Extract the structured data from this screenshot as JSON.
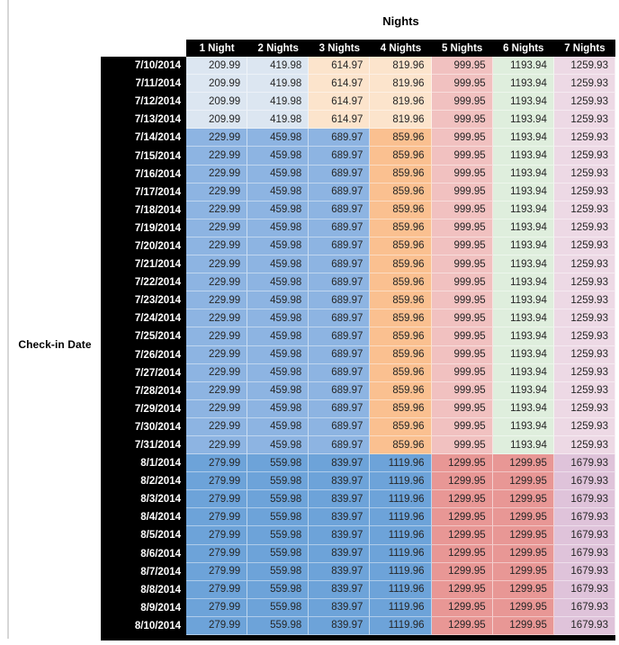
{
  "page": {
    "background": "#ffffff",
    "left_gutter_line_color": "#d6d6d6"
  },
  "table": {
    "title": "Nights",
    "row_axis_label": "Check-in Date",
    "header_bg": "#000000",
    "header_text_color": "#ffffff",
    "date_col_bg": "#000000",
    "date_text_color": "#ffffff",
    "value_text_color": "#262626",
    "columns": [
      "1 Night",
      "2 Nights",
      "3 Nights",
      "4 Nights",
      "5 Nights",
      "6 Nights",
      "7 Nights"
    ],
    "groups": {
      "early_july": {
        "values": [
          "209.99",
          "419.98",
          "614.97",
          "819.96",
          "999.95",
          "1193.94",
          "1259.93"
        ],
        "cell_colors": [
          "#DCE6F1",
          "#DCE6F1",
          "#FCE4CC",
          "#FCE4CC",
          "#F1C1C0",
          "#DFEEDD",
          "#EDD9E5"
        ]
      },
      "mid_july": {
        "values": [
          "229.99",
          "459.98",
          "689.97",
          "859.96",
          "999.95",
          "1193.94",
          "1259.93"
        ],
        "cell_colors": [
          "#8DB4E2",
          "#8DB4E2",
          "#8DB4E2",
          "#FAC090",
          "#F1C1C0",
          "#DFEEDD",
          "#EDD9E5"
        ]
      },
      "august": {
        "values": [
          "279.99",
          "559.98",
          "839.97",
          "1119.96",
          "1299.95",
          "1299.95",
          "1679.93"
        ],
        "cell_colors": [
          "#6DA3D9",
          "#6DA3D9",
          "#6DA3D9",
          "#6DA3D9",
          "#E89795",
          "#E89795",
          "#DFC3DA"
        ]
      }
    },
    "rows": [
      {
        "date": "7/10/2014",
        "group": "early_july"
      },
      {
        "date": "7/11/2014",
        "group": "early_july"
      },
      {
        "date": "7/12/2014",
        "group": "early_july"
      },
      {
        "date": "7/13/2014",
        "group": "early_july"
      },
      {
        "date": "7/14/2014",
        "group": "mid_july"
      },
      {
        "date": "7/15/2014",
        "group": "mid_july"
      },
      {
        "date": "7/16/2014",
        "group": "mid_july"
      },
      {
        "date": "7/17/2014",
        "group": "mid_july"
      },
      {
        "date": "7/18/2014",
        "group": "mid_july"
      },
      {
        "date": "7/19/2014",
        "group": "mid_july"
      },
      {
        "date": "7/20/2014",
        "group": "mid_july"
      },
      {
        "date": "7/21/2014",
        "group": "mid_july"
      },
      {
        "date": "7/22/2014",
        "group": "mid_july"
      },
      {
        "date": "7/23/2014",
        "group": "mid_july"
      },
      {
        "date": "7/24/2014",
        "group": "mid_july"
      },
      {
        "date": "7/25/2014",
        "group": "mid_july"
      },
      {
        "date": "7/26/2014",
        "group": "mid_july"
      },
      {
        "date": "7/27/2014",
        "group": "mid_july"
      },
      {
        "date": "7/28/2014",
        "group": "mid_july"
      },
      {
        "date": "7/29/2014",
        "group": "mid_july"
      },
      {
        "date": "7/30/2014",
        "group": "mid_july"
      },
      {
        "date": "7/31/2014",
        "group": "mid_july"
      },
      {
        "date": "8/1/2014",
        "group": "august"
      },
      {
        "date": "8/2/2014",
        "group": "august"
      },
      {
        "date": "8/3/2014",
        "group": "august"
      },
      {
        "date": "8/4/2014",
        "group": "august"
      },
      {
        "date": "8/5/2014",
        "group": "august"
      },
      {
        "date": "8/6/2014",
        "group": "august"
      },
      {
        "date": "8/7/2014",
        "group": "august"
      },
      {
        "date": "8/8/2014",
        "group": "august"
      },
      {
        "date": "8/9/2014",
        "group": "august"
      },
      {
        "date": "8/10/2014",
        "group": "august"
      }
    ]
  }
}
